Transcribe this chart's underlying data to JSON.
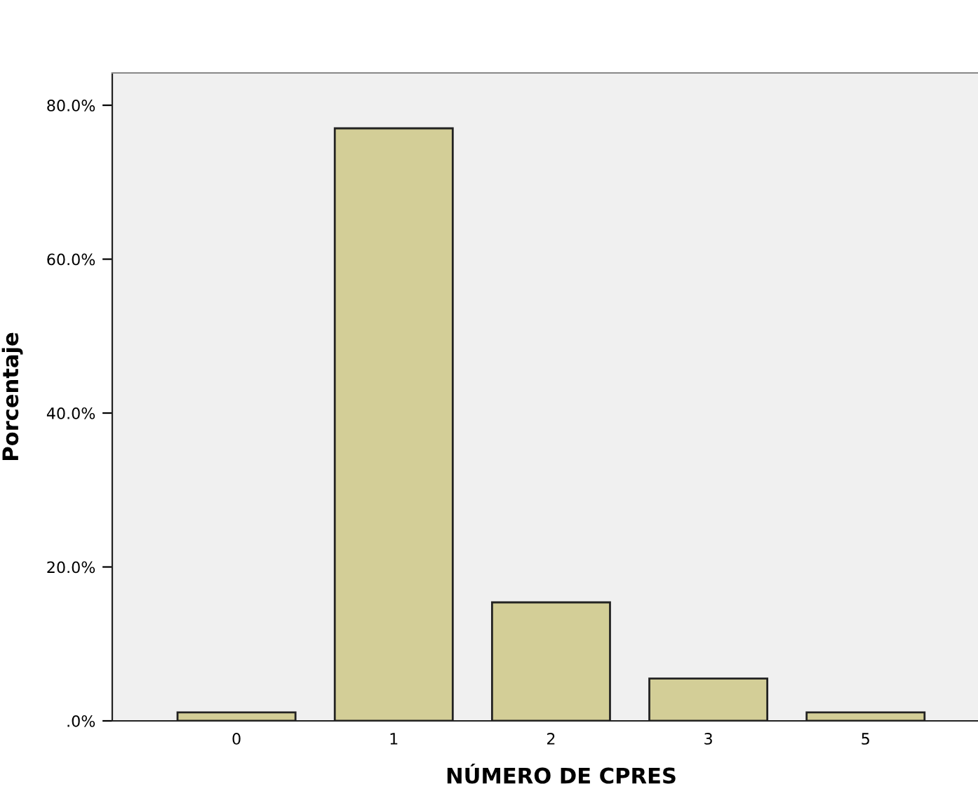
{
  "chart_data": {
    "type": "bar",
    "xlabel": "NÚMERO DE CPRES",
    "ylabel": "Porcentaje",
    "categories": [
      "0",
      "1",
      "2",
      "3",
      "5"
    ],
    "values": [
      1.1,
      77.0,
      15.4,
      5.5,
      1.1
    ],
    "color": "#d3ce97",
    "ylim": [
      0,
      84.2
    ],
    "yticks": [
      {
        "value": 0,
        "label": ".0%"
      },
      {
        "value": 20,
        "label": "20.0%"
      },
      {
        "value": 40,
        "label": "40.0%"
      },
      {
        "value": 60,
        "label": "60.0%"
      },
      {
        "value": 80,
        "label": "80.0%"
      }
    ],
    "grid": false
  }
}
